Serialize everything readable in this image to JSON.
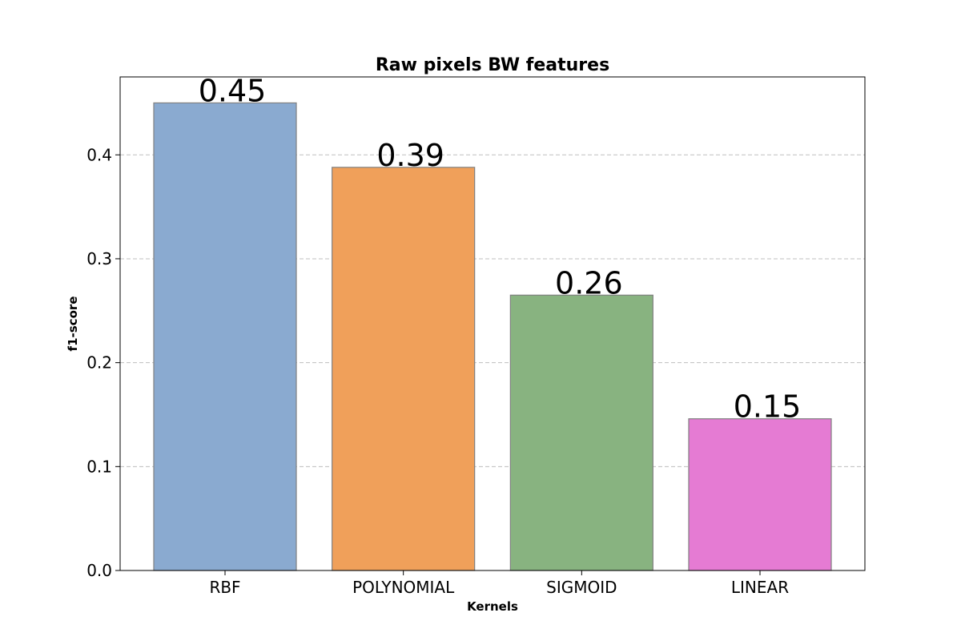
{
  "chart_data": {
    "type": "bar",
    "title": "Raw pixels BW features",
    "xlabel": "Kernels",
    "ylabel": "f1-score",
    "categories": [
      "RBF",
      "POLYNOMIAL",
      "SIGMOID",
      "LINEAR"
    ],
    "values": [
      0.45,
      0.388,
      0.265,
      0.146
    ],
    "value_labels": [
      "0.45",
      "0.39",
      "0.26",
      "0.15"
    ],
    "colors": [
      "#8aaad0",
      "#f0a05a",
      "#88b380",
      "#e57bd3"
    ],
    "ylim": [
      0,
      0.475
    ],
    "yticks": [
      0.0,
      0.1,
      0.2,
      0.3,
      0.4
    ],
    "ytick_labels": [
      "0.0",
      "0.1",
      "0.2",
      "0.3",
      "0.4"
    ],
    "grid": "y-dashed",
    "legend": "none"
  }
}
